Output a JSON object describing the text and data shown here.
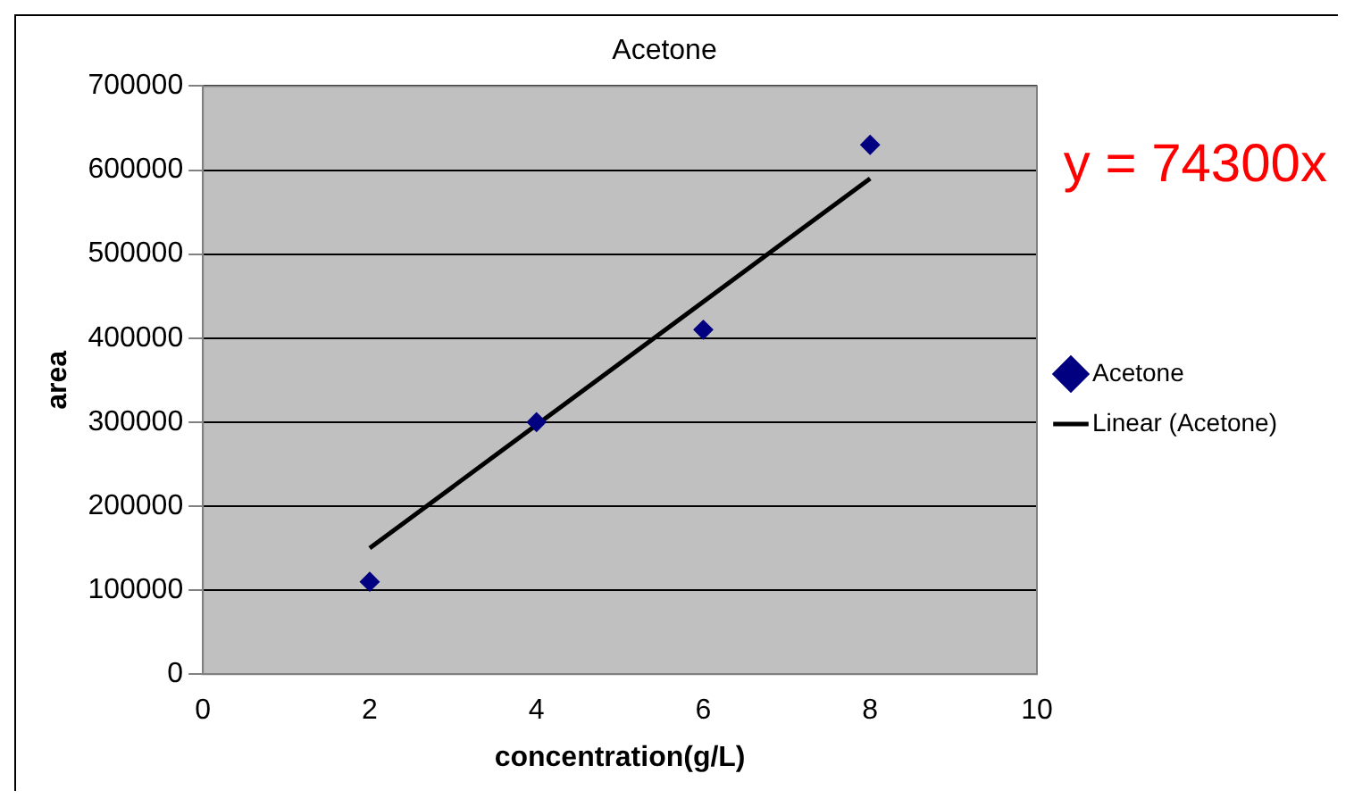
{
  "chart_data": {
    "type": "scatter",
    "title": "Acetone",
    "xlabel": "concentration(g/L)",
    "ylabel": "area",
    "xlim": [
      0,
      10
    ],
    "xticks": [
      0,
      2,
      4,
      6,
      8,
      10
    ],
    "ylim": [
      0,
      700000
    ],
    "yticks": [
      0,
      100000,
      200000,
      300000,
      400000,
      500000,
      600000,
      700000
    ],
    "grid": "y",
    "legend": "right",
    "annotations": [
      "y = 74300x"
    ],
    "series": [
      {
        "name": "Acetone",
        "type": "scatter",
        "marker": "diamond",
        "color": "#000080",
        "x": [
          2,
          4,
          6,
          8
        ],
        "values": [
          110000,
          300000,
          410000,
          630000
        ]
      },
      {
        "name": "Linear (Acetone)",
        "type": "line",
        "marker": "none",
        "line_style": "solid",
        "color": "#000000",
        "x": [
          2,
          8
        ],
        "values": [
          150000,
          590000
        ]
      }
    ]
  }
}
